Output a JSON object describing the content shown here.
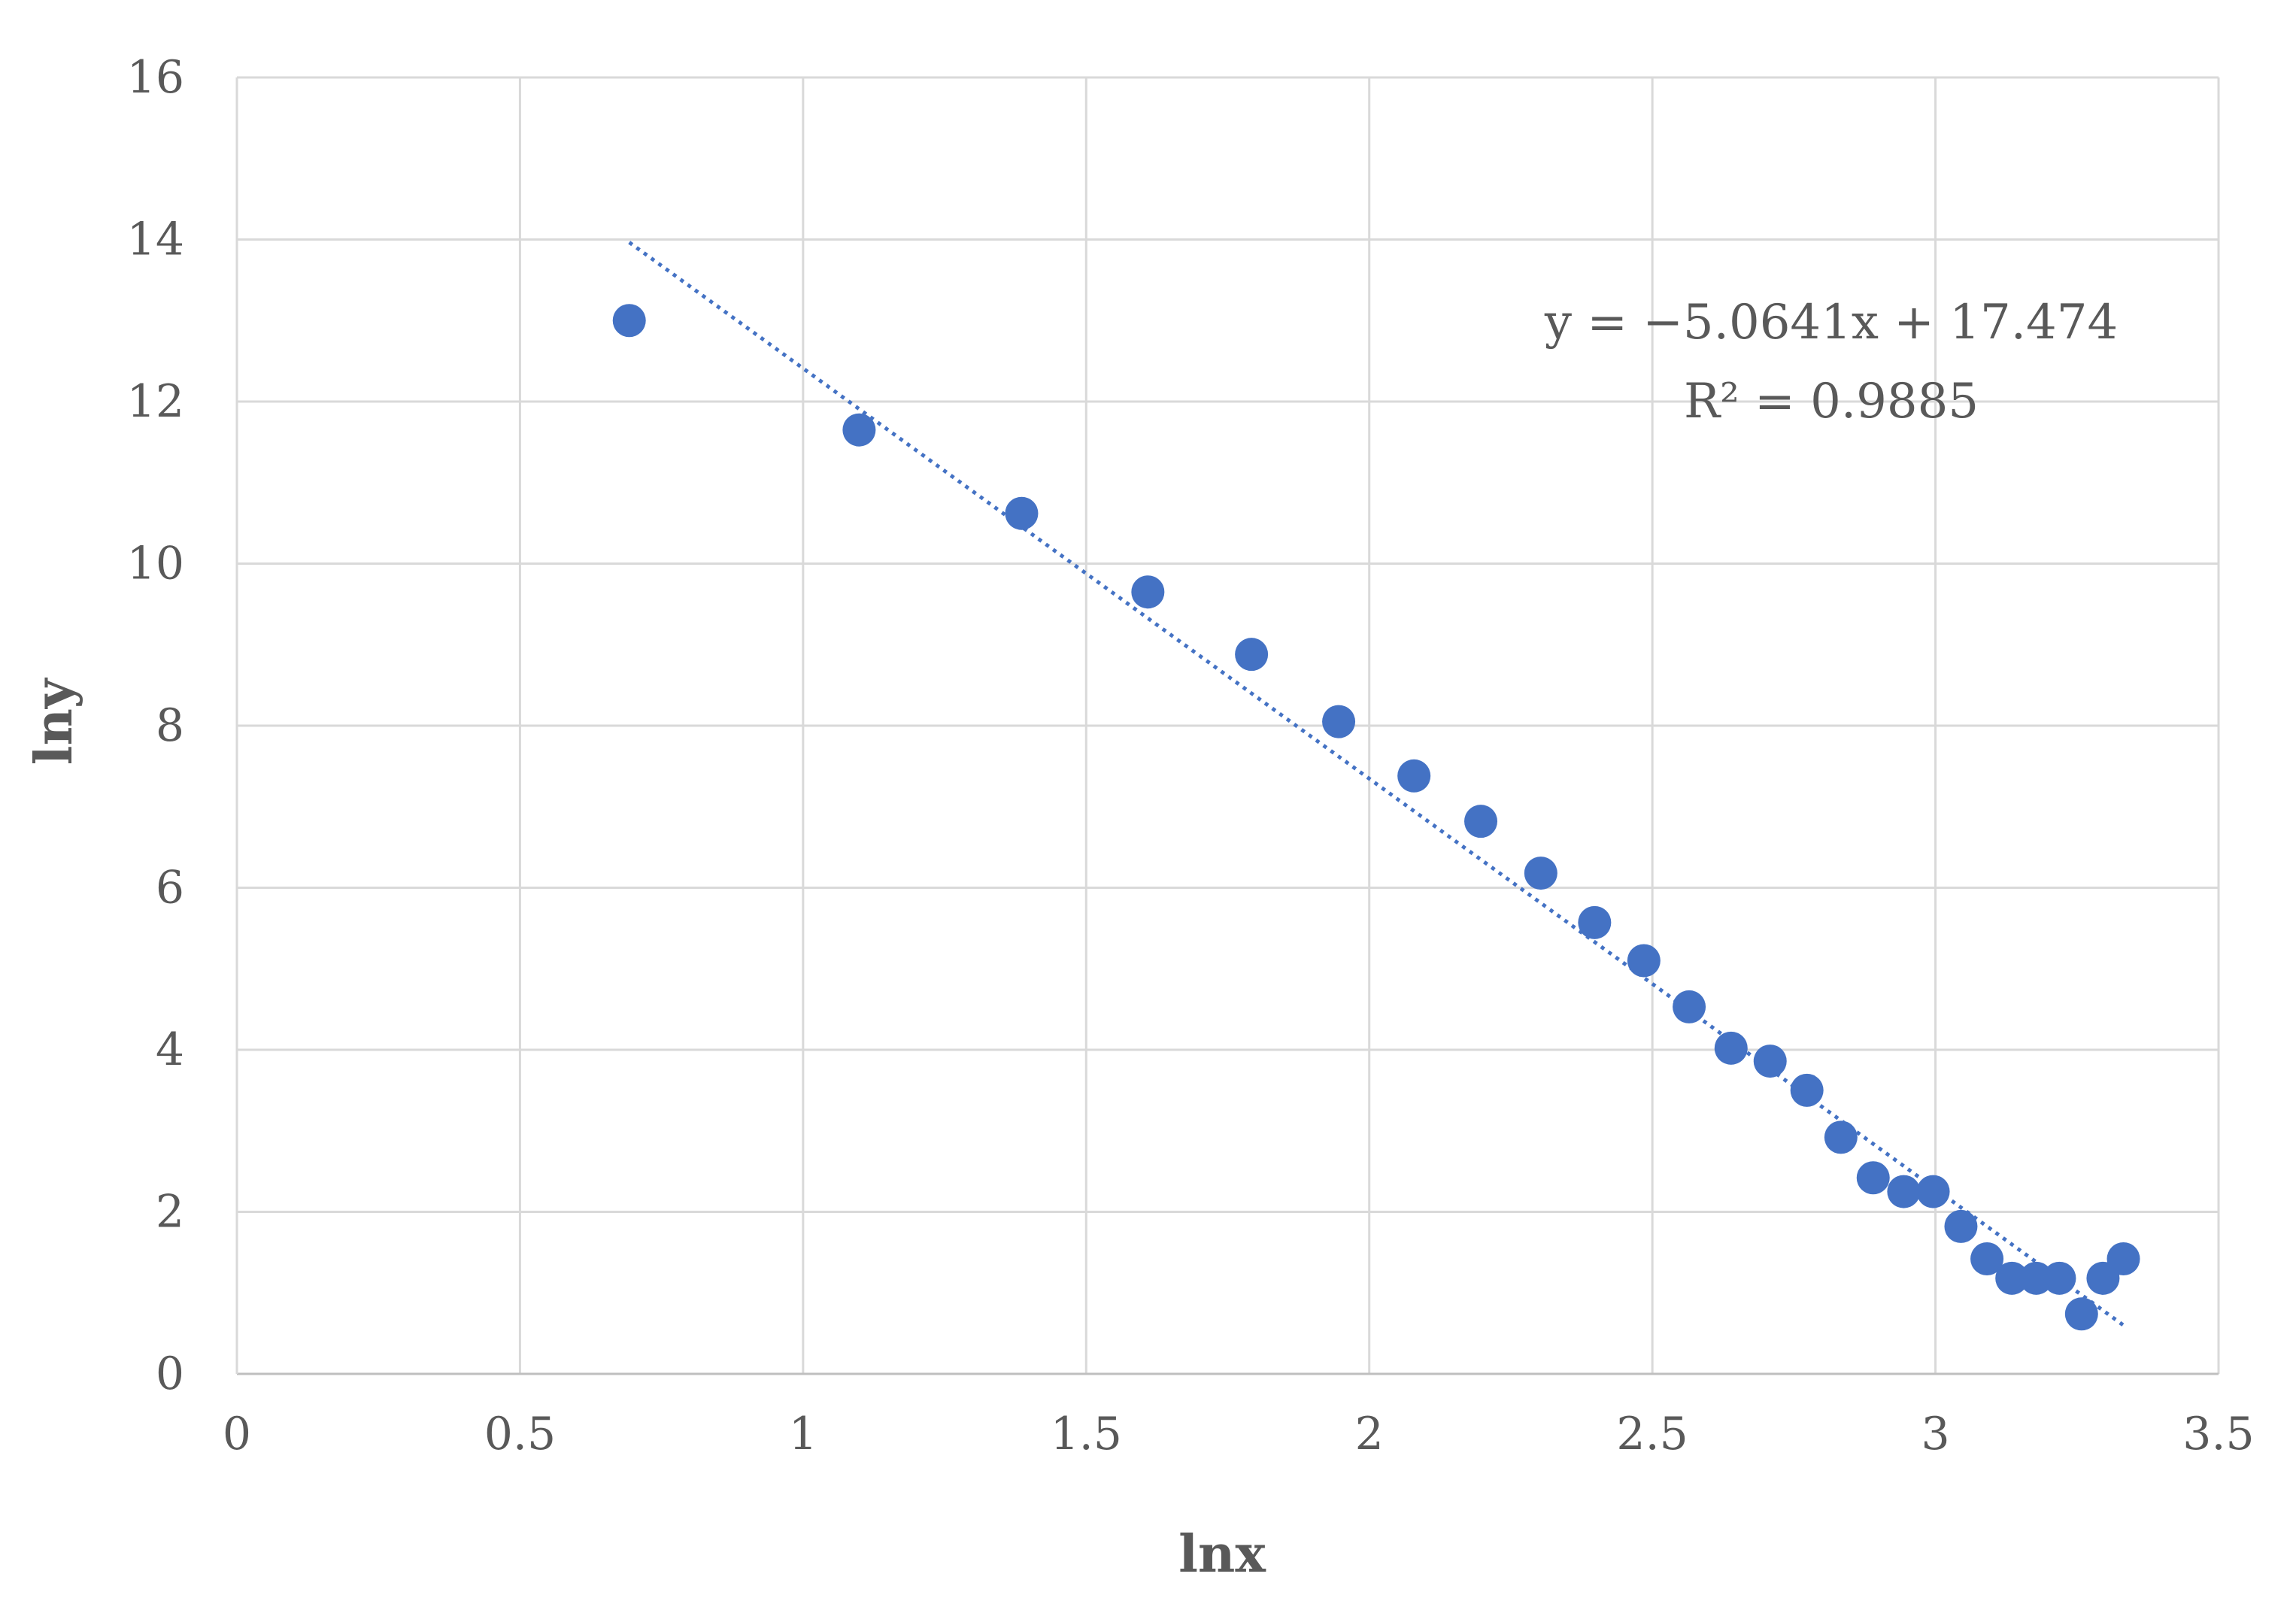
{
  "chart_data": {
    "type": "scatter",
    "title": "",
    "xlabel": "lnx",
    "ylabel": "lny",
    "xlim": [
      0,
      3.5
    ],
    "ylim": [
      0,
      16
    ],
    "xticks": [
      0,
      0.5,
      1,
      1.5,
      2,
      2.5,
      3,
      3.5
    ],
    "xtick_labels": [
      "0",
      "0.5",
      "1",
      "1.5",
      "2",
      "2.5",
      "3",
      "3.5"
    ],
    "yticks": [
      0,
      2,
      4,
      6,
      8,
      10,
      12,
      14,
      16
    ],
    "ytick_labels": [
      "0",
      "2",
      "4",
      "6",
      "8",
      "10",
      "12",
      "14",
      "16"
    ],
    "grid": true,
    "legend": "none",
    "marker_color": "#4472C4",
    "trendline_color": "#4472C4",
    "series": [
      {
        "points": [
          [
            0.693,
            13.0
          ],
          [
            1.099,
            11.65
          ],
          [
            1.386,
            10.62
          ],
          [
            1.609,
            9.65
          ],
          [
            1.792,
            8.88
          ],
          [
            1.946,
            8.05
          ],
          [
            2.079,
            7.38
          ],
          [
            2.197,
            6.82
          ],
          [
            2.303,
            6.18
          ],
          [
            2.398,
            5.57
          ],
          [
            2.485,
            5.1
          ],
          [
            2.565,
            4.53
          ],
          [
            2.639,
            4.02
          ],
          [
            2.708,
            3.86
          ],
          [
            2.773,
            3.5
          ],
          [
            2.833,
            2.92
          ],
          [
            2.89,
            2.42
          ],
          [
            2.944,
            2.25
          ],
          [
            2.996,
            2.25
          ],
          [
            3.045,
            1.82
          ],
          [
            3.091,
            1.42
          ],
          [
            3.135,
            1.18
          ],
          [
            3.178,
            1.18
          ],
          [
            3.219,
            1.18
          ],
          [
            3.258,
            0.74
          ],
          [
            3.296,
            1.18
          ],
          [
            3.332,
            1.42
          ]
        ]
      }
    ],
    "trendline": {
      "slope": -5.0641,
      "intercept": 17.474,
      "x_range": [
        0.693,
        3.332
      ],
      "equation_label": "y = −5.0641x + 17.474",
      "r2_label": "R² = 0.9885"
    }
  }
}
